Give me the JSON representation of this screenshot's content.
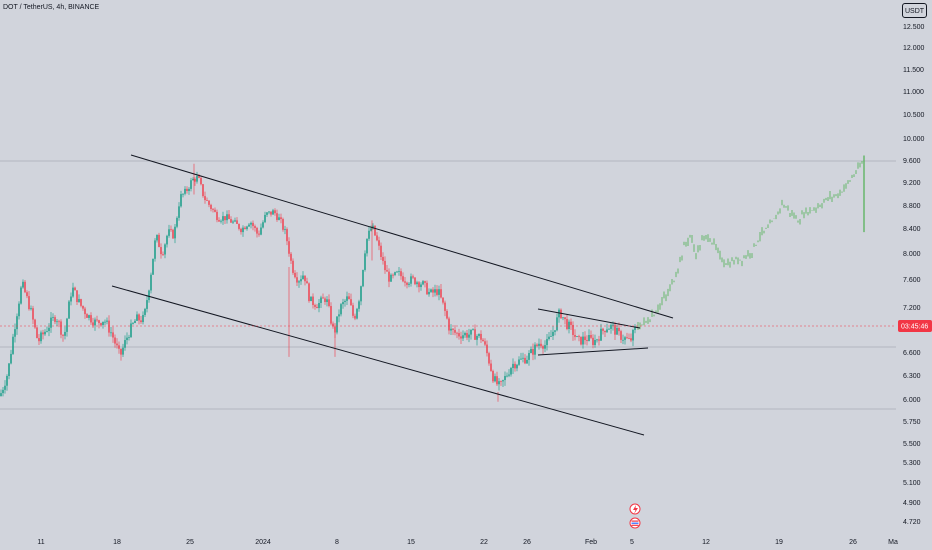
{
  "header": {
    "title": "DOT / TetherUS, 4h, BINANCE",
    "unit_badge": "USDT"
  },
  "chart_data": {
    "type": "candlestick",
    "y_ticks": [
      "12.500",
      "12.000",
      "11.500",
      "11.000",
      "10.500",
      "10.000",
      "9.600",
      "9.200",
      "8.800",
      "8.400",
      "8.000",
      "7.600",
      "7.200",
      "6.600",
      "6.300",
      "6.000",
      "5.750",
      "5.500",
      "5.300",
      "5.100",
      "4.900",
      "4.720"
    ],
    "x_ticks": [
      "11",
      "18",
      "25",
      "2024",
      "8",
      "15",
      "22",
      "26",
      "Feb",
      "5",
      "12",
      "19",
      "26",
      "Ma"
    ],
    "current_price_label": "03:45:46",
    "colors": {
      "up": "#089981",
      "down": "#f23645",
      "projection": "#4caf50",
      "line": "#131722",
      "price_tag": "#f23645",
      "background": "#d1d4dc"
    },
    "annotations": [
      "descending channel",
      "triangle",
      "projected path"
    ],
    "event_icons": [
      "lightning-event-icon",
      "us-flag-event-icon"
    ]
  }
}
